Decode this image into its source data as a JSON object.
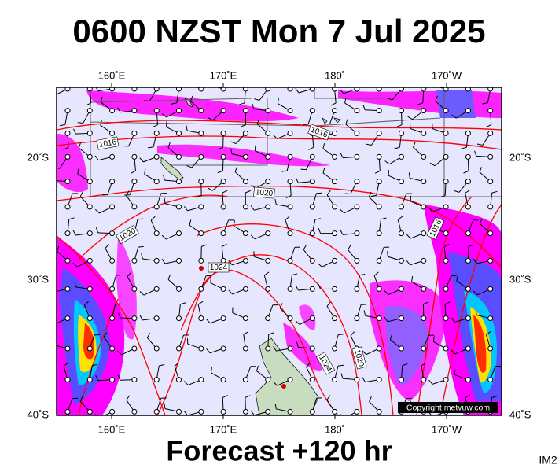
{
  "map": {
    "title": "0600 NZST Mon 7 Jul 2025",
    "footer": "Forecast +120 hr",
    "corner_label": "IM2",
    "copyright": "Copyright metvuw.com",
    "longitude_labels": [
      "160˚E",
      "170˚E",
      "180˚",
      "170˚W"
    ],
    "latitude_labels": [
      "20˚S",
      "30˚S",
      "40˚S"
    ],
    "isobar_labels": [
      "1016",
      "1016",
      "1020",
      "1020",
      "1024",
      "1016",
      "1024",
      "1020"
    ]
  }
}
